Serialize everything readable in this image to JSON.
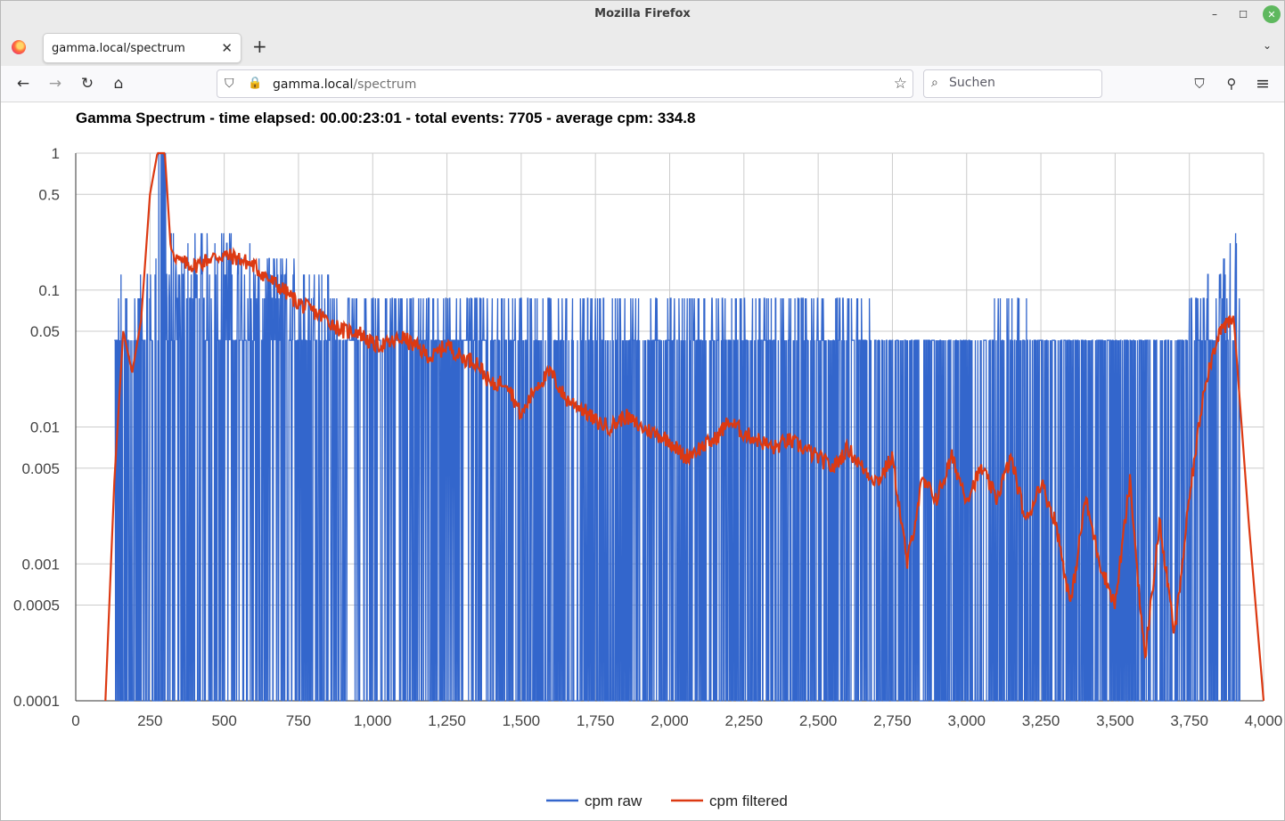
{
  "window": {
    "title": "Mozilla Firefox",
    "minimize": "–",
    "maximize": "☐",
    "close": "✕"
  },
  "tabs": [
    {
      "label": "gamma.local/spectrum"
    }
  ],
  "tab_controls": {
    "close": "✕",
    "new_tab": "+",
    "list": "⌄"
  },
  "nav": {
    "back": "←",
    "forward": "→",
    "reload": "↻",
    "home": "⌂",
    "shield": "⛉",
    "lock": "🔒",
    "star": "☆"
  },
  "address": {
    "host": "gamma.local",
    "path": "/spectrum"
  },
  "search": {
    "placeholder": "Suchen",
    "icon": "⌕"
  },
  "toolbar_icons": {
    "pocket": "⛉",
    "extensions": "⚲",
    "menu": "≡"
  },
  "colors": {
    "raw": "#3366cc",
    "filtered": "#dc3912",
    "grid": "#cccccc"
  },
  "chart_data": {
    "type": "line",
    "title": "Gamma Spectrum - time elapsed: 00.00:23:01 - total events: 7705 - average cpm: 334.8",
    "xlabel": "",
    "ylabel": "",
    "y_scale": "log",
    "xlim": [
      0,
      4000
    ],
    "ylim": [
      0.0001,
      1
    ],
    "grid": true,
    "legend": "bottom",
    "x_ticks": [
      "0",
      "250",
      "500",
      "750",
      "1,000",
      "1,250",
      "1,500",
      "1,750",
      "2,000",
      "2,250",
      "2,500",
      "2,750",
      "3,000",
      "3,250",
      "3,500",
      "3,750",
      "4,000"
    ],
    "y_ticks": [
      "1",
      "0.5",
      "0.1",
      "0.05",
      "0.01",
      "0.005",
      "0.001",
      "0.0005",
      "0.0001"
    ],
    "series": [
      {
        "name": "cpm raw",
        "description_values": "raw spectrum: discrete bins, levels mostly at 0.043 (1 count) with spikes to 0.087/0.13/0.17/0.26",
        "x": [
          130,
          150,
          180,
          220,
          260,
          280,
          300,
          330,
          360,
          400,
          450,
          500,
          550,
          600,
          650,
          700,
          750,
          800,
          850,
          900,
          950,
          1000,
          1100,
          1200,
          1300,
          1400,
          1500,
          1600,
          1700,
          1800,
          1900,
          2000,
          2100,
          2200,
          2300,
          2400,
          2500,
          2600,
          2700,
          2800,
          2900,
          3000,
          3100,
          3200,
          3300,
          3400,
          3500,
          3600,
          3700,
          3750,
          3800,
          3850,
          3880,
          3900,
          3920
        ],
        "values": [
          0.043,
          0.13,
          0.17,
          0.13,
          0.13,
          1,
          1,
          0.26,
          0.22,
          0.26,
          0.26,
          0.26,
          0.26,
          0.22,
          0.17,
          0.17,
          0.17,
          0.13,
          0.13,
          0.087,
          0.087,
          0.087,
          0.087,
          0.087,
          0.087,
          0.087,
          0.087,
          0.087,
          0.087,
          0.087,
          0.087,
          0.087,
          0.087,
          0.087,
          0.087,
          0.087,
          0.087,
          0.087,
          0.087,
          0.043,
          0.043,
          0.043,
          0.087,
          0.087,
          0.043,
          0.043,
          0.043,
          0.043,
          0.043,
          0.087,
          0.13,
          0.17,
          0.22,
          0.39,
          0.13
        ]
      },
      {
        "name": "cpm filtered",
        "x": [
          100,
          130,
          160,
          190,
          220,
          250,
          275,
          300,
          320,
          350,
          400,
          450,
          500,
          550,
          600,
          650,
          700,
          750,
          800,
          850,
          900,
          950,
          1000,
          1050,
          1100,
          1150,
          1200,
          1250,
          1300,
          1350,
          1400,
          1450,
          1500,
          1550,
          1600,
          1650,
          1700,
          1750,
          1800,
          1850,
          1900,
          1950,
          2000,
          2050,
          2100,
          2150,
          2200,
          2250,
          2300,
          2350,
          2400,
          2450,
          2500,
          2550,
          2600,
          2650,
          2700,
          2750,
          2800,
          2850,
          2900,
          2950,
          3000,
          3050,
          3100,
          3150,
          3200,
          3250,
          3300,
          3350,
          3400,
          3450,
          3500,
          3550,
          3600,
          3650,
          3700,
          3750,
          3800,
          3850,
          3900,
          3950,
          4000
        ],
        "values": [
          0.0001,
          0.004,
          0.05,
          0.025,
          0.06,
          0.5,
          1,
          1,
          0.2,
          0.16,
          0.15,
          0.17,
          0.18,
          0.17,
          0.15,
          0.12,
          0.1,
          0.08,
          0.07,
          0.06,
          0.05,
          0.05,
          0.04,
          0.04,
          0.045,
          0.038,
          0.032,
          0.04,
          0.032,
          0.03,
          0.02,
          0.022,
          0.012,
          0.02,
          0.025,
          0.016,
          0.014,
          0.011,
          0.01,
          0.012,
          0.01,
          0.009,
          0.008,
          0.006,
          0.007,
          0.008,
          0.011,
          0.009,
          0.008,
          0.007,
          0.008,
          0.007,
          0.006,
          0.005,
          0.007,
          0.005,
          0.004,
          0.006,
          0.001,
          0.004,
          0.003,
          0.006,
          0.003,
          0.005,
          0.003,
          0.006,
          0.002,
          0.004,
          0.002,
          0.0005,
          0.003,
          0.001,
          0.0005,
          0.004,
          0.0002,
          0.002,
          0.0003,
          0.003,
          0.02,
          0.05,
          0.06,
          0.002,
          0.0001
        ]
      }
    ]
  }
}
